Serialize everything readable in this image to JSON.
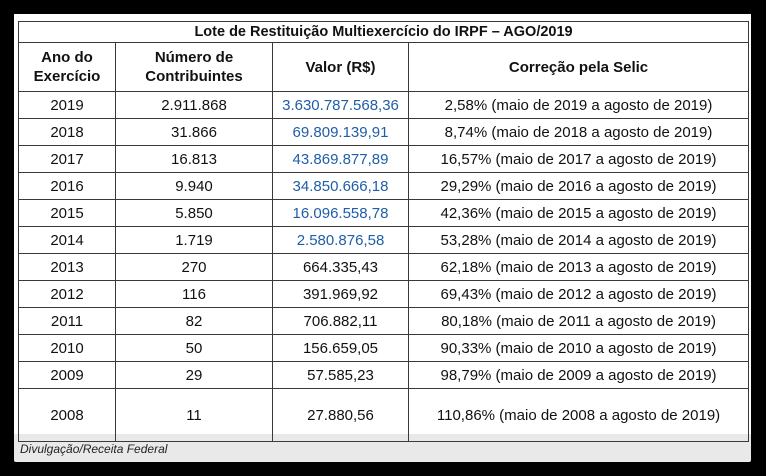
{
  "table": {
    "title": "Lote de Restituição Multiexercício do IRPF – AGO/2019",
    "headers": {
      "ano_line1": "Ano do",
      "ano_line2": "Exercício",
      "num_line1": "Número de",
      "num_line2": "Contribuintes",
      "valor": "Valor (R$)",
      "correcao": "Correção pela Selic"
    },
    "rows": [
      {
        "ano": "2019",
        "contribuintes": "2.911.868",
        "valor": "3.630.787.568,36",
        "correcao": "2,58% (maio de 2019 a agosto de 2019)"
      },
      {
        "ano": "2018",
        "contribuintes": "31.866",
        "valor": "69.809.139,91",
        "correcao": "8,74% (maio de 2018 a agosto de 2019)"
      },
      {
        "ano": "2017",
        "contribuintes": "16.813",
        "valor": "43.869.877,89",
        "correcao": "16,57% (maio de 2017 a agosto de 2019)"
      },
      {
        "ano": "2016",
        "contribuintes": "9.940",
        "valor": "34.850.666,18",
        "correcao": "29,29% (maio de 2016 a agosto de 2019)"
      },
      {
        "ano": "2015",
        "contribuintes": "5.850",
        "valor": "16.096.558,78",
        "correcao": "42,36% (maio de 2015 a agosto de 2019)"
      },
      {
        "ano": "2014",
        "contribuintes": "1.719",
        "valor": "2.580.876,58",
        "correcao": "53,28% (maio de 2014 a agosto de 2019)"
      },
      {
        "ano": "2013",
        "contribuintes": "270",
        "valor": "664.335,43",
        "correcao": "62,18% (maio de 2013 a agosto de 2019)"
      },
      {
        "ano": "2012",
        "contribuintes": "116",
        "valor": "391.969,92",
        "correcao": "69,43% (maio de 2012 a agosto de 2019)"
      },
      {
        "ano": "2011",
        "contribuintes": "82",
        "valor": "706.882,11",
        "correcao": "80,18% (maio de 2011 a agosto de 2019)"
      },
      {
        "ano": "2010",
        "contribuintes": "50",
        "valor": "156.659,05",
        "correcao": "90,33% (maio de 2010 a agosto de 2019)"
      },
      {
        "ano": "2009",
        "contribuintes": "29",
        "valor": "57.585,23",
        "correcao": "98,79% (maio de 2009 a agosto de 2019)"
      },
      {
        "ano": "2008",
        "contribuintes": "11",
        "valor": "27.880,56",
        "correcao": "110,86% (maio de 2008 a agosto de 2019)"
      }
    ],
    "colors": {
      "link_value": "#1f5ea8",
      "text": "#111111",
      "border": "#3a3a3a"
    }
  },
  "caption": "Divulgação/Receita Federal"
}
